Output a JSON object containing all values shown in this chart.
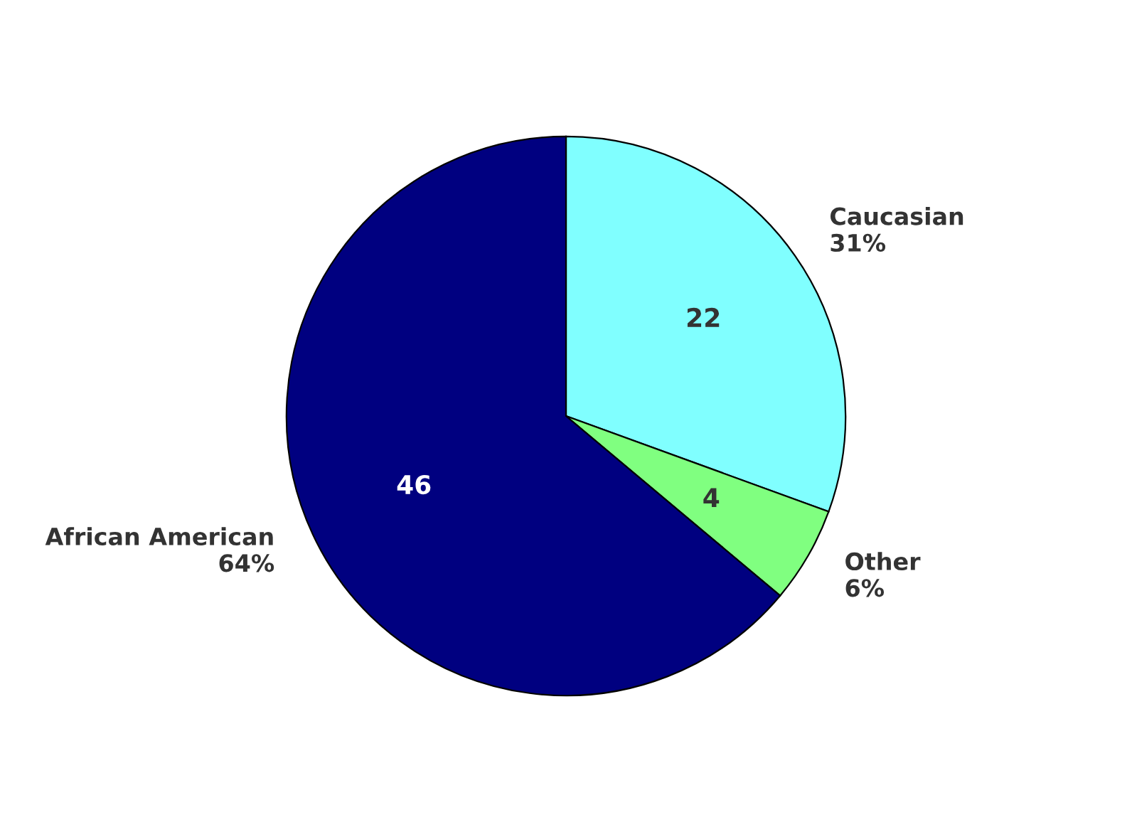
{
  "chart_data": {
    "type": "pie",
    "categories": [
      "Caucasian",
      "Other",
      "African American"
    ],
    "values": [
      22,
      4,
      46
    ],
    "colors": [
      "#80ffff",
      "#80ff80",
      "#000080"
    ],
    "annotations": [
      "31%",
      "6%",
      "64%"
    ],
    "data_labels": true,
    "legend": false
  }
}
